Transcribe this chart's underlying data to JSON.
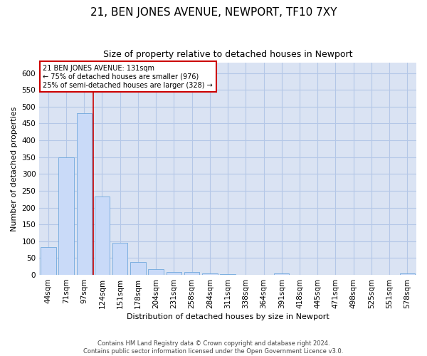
{
  "title": "21, BEN JONES AVENUE, NEWPORT, TF10 7XY",
  "subtitle": "Size of property relative to detached houses in Newport",
  "xlabel": "Distribution of detached houses by size in Newport",
  "ylabel": "Number of detached properties",
  "footer_line1": "Contains HM Land Registry data © Crown copyright and database right 2024.",
  "footer_line2": "Contains public sector information licensed under the Open Government Licence v3.0.",
  "categories": [
    "44sqm",
    "71sqm",
    "97sqm",
    "124sqm",
    "151sqm",
    "178sqm",
    "204sqm",
    "231sqm",
    "258sqm",
    "284sqm",
    "311sqm",
    "338sqm",
    "364sqm",
    "391sqm",
    "418sqm",
    "445sqm",
    "471sqm",
    "498sqm",
    "525sqm",
    "551sqm",
    "578sqm"
  ],
  "values": [
    82,
    350,
    480,
    233,
    96,
    38,
    17,
    8,
    8,
    4,
    2,
    0,
    0,
    5,
    0,
    0,
    0,
    0,
    0,
    0,
    4
  ],
  "bar_color": "#c9daf8",
  "bar_edge_color": "#6fa8dc",
  "grid_color": "#b4c7e7",
  "background_color": "#dae3f3",
  "annotation_text": "21 BEN JONES AVENUE: 131sqm\n← 75% of detached houses are smaller (976)\n25% of semi-detached houses are larger (328) →",
  "vline_x_index": 2.5,
  "vline_color": "#cc0000",
  "annotation_box_color": "#ffffff",
  "annotation_box_edge": "#cc0000",
  "ylim": [
    0,
    630
  ],
  "yticks": [
    0,
    50,
    100,
    150,
    200,
    250,
    300,
    350,
    400,
    450,
    500,
    550,
    600
  ],
  "title_fontsize": 11,
  "subtitle_fontsize": 9,
  "axis_label_fontsize": 8,
  "tick_fontsize": 7.5,
  "annotation_fontsize": 7,
  "footer_fontsize": 6
}
